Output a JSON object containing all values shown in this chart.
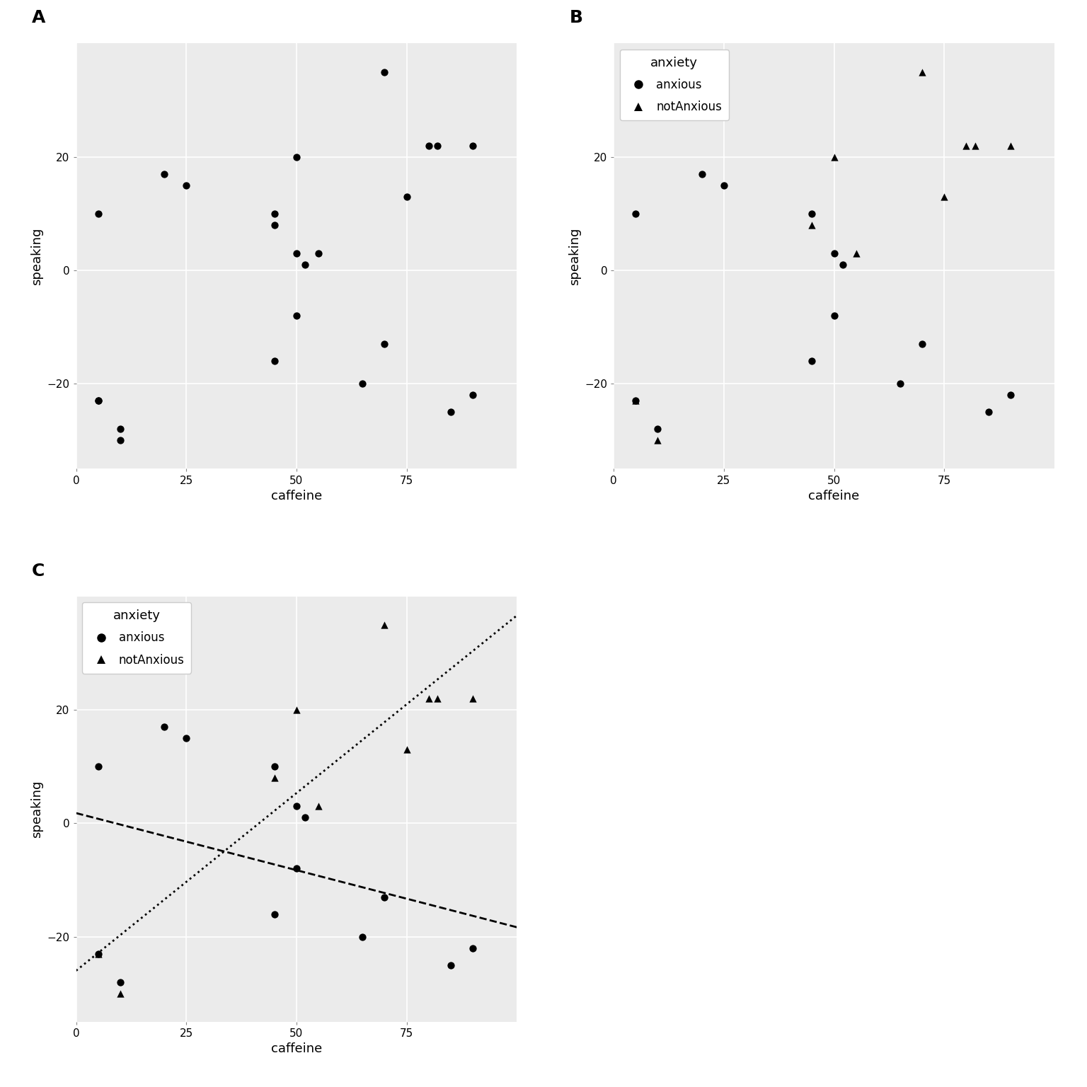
{
  "anxious_x": [
    5,
    5,
    10,
    20,
    25,
    45,
    45,
    50,
    52,
    50,
    65,
    70,
    85,
    90
  ],
  "anxious_y": [
    10,
    -23,
    -28,
    17,
    15,
    10,
    -16,
    3,
    1,
    -8,
    -20,
    -13,
    -25,
    -22
  ],
  "notanxious_x": [
    5,
    10,
    45,
    50,
    55,
    70,
    75,
    80,
    82,
    90
  ],
  "notanxious_y": [
    -23,
    -30,
    8,
    20,
    3,
    35,
    13,
    22,
    22,
    22
  ],
  "bg_color": "#EBEBEB",
  "outer_bg": "#FFFFFF",
  "point_color": "#000000",
  "xlabel": "caffeine",
  "ylabel": "speaking",
  "xlim": [
    0,
    100
  ],
  "ylim": [
    -35,
    40
  ],
  "yticks": [
    -20,
    0,
    20
  ],
  "xticks": [
    0,
    25,
    50,
    75
  ],
  "legend_title": "anxiety",
  "legend_anxious": "anxious",
  "legend_notanxious": "notAnxious",
  "label_A": "A",
  "label_B": "B",
  "label_C": "C",
  "point_size": 55,
  "grid_color": "#FFFFFF",
  "grid_linewidth": 1.2,
  "label_fontsize": 18,
  "axis_label_fontsize": 13,
  "tick_fontsize": 11,
  "legend_fontsize": 12,
  "legend_title_fontsize": 13
}
